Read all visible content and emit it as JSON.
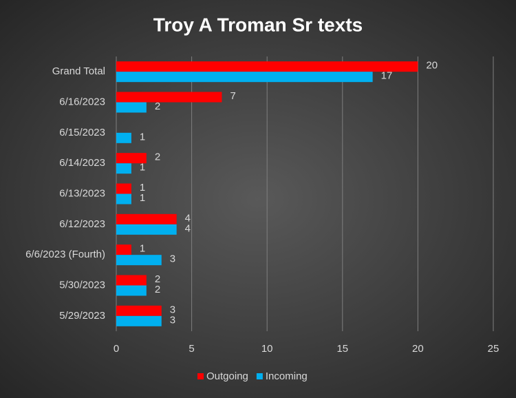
{
  "chart_data": {
    "type": "hbar",
    "title": "Troy A Troman Sr texts",
    "categories": [
      "Grand Total",
      "6/16/2023",
      "6/15/2023",
      "6/14/2023",
      "6/13/2023",
      "6/12/2023",
      "6/6/2023 (Fourth)",
      "5/30/2023",
      "5/29/2023"
    ],
    "series": [
      {
        "name": "Outgoing",
        "color": "#ff0000",
        "values": [
          20,
          7,
          null,
          2,
          1,
          4,
          1,
          2,
          3
        ]
      },
      {
        "name": "Incoming",
        "color": "#00b0f0",
        "values": [
          17,
          2,
          1,
          1,
          1,
          4,
          3,
          2,
          3
        ]
      }
    ],
    "xlim": [
      0,
      25
    ],
    "xticks": [
      0,
      5,
      10,
      15,
      20,
      25
    ],
    "grid": true,
    "legend": "bottom"
  }
}
